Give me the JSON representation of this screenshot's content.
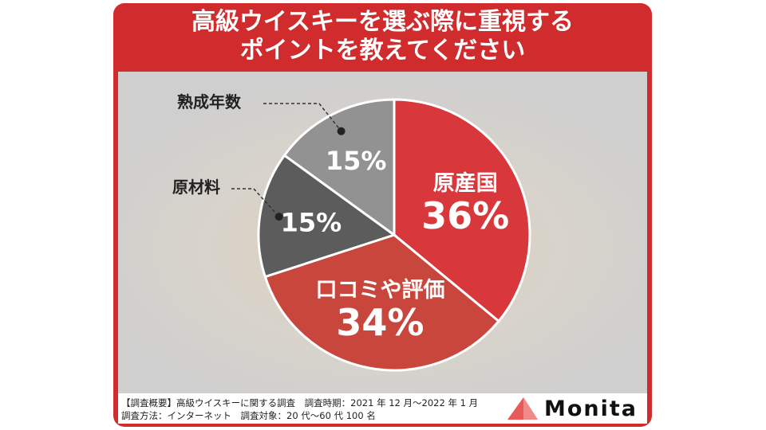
{
  "title": {
    "line1": "高級ウイスキーを選ぶ際に重視する",
    "line2": "ポイントを教えてください"
  },
  "colors": {
    "frame": "#d02c2e",
    "slice_origin": "#d8383c",
    "slice_reviews": "#c9463c",
    "slice_materials": "#5c5c5c",
    "slice_aging": "#929292"
  },
  "chart_data": {
    "type": "pie",
    "slices": [
      {
        "label": "原産国",
        "value": 36,
        "value_label": "36%"
      },
      {
        "label": "口コミや評価",
        "value": 34,
        "value_label": "34%"
      },
      {
        "label": "原材料",
        "value": 15,
        "value_label": "15%"
      },
      {
        "label": "熟成年数",
        "value": 15,
        "value_label": "15%"
      }
    ]
  },
  "footer": {
    "line1": "【調査概要】高級ウイスキーに関する調査　調査時期：2021 年 12 月〜2022 年 1 月",
    "line2": "調査方法：インターネット　調査対象：20 代〜60 代 100 名"
  },
  "brand": {
    "name": "Monita",
    "logo_icon": "triangle-logo-icon"
  }
}
